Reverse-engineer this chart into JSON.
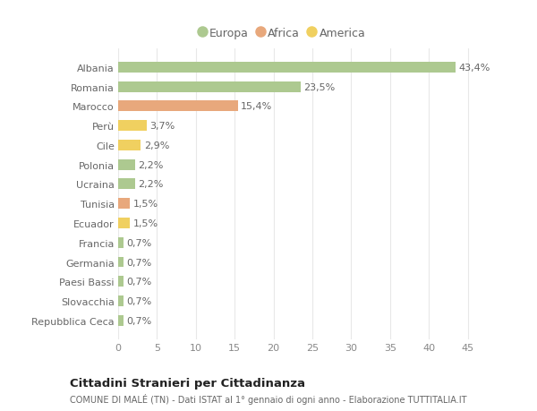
{
  "categories": [
    "Albania",
    "Romania",
    "Marocco",
    "Perù",
    "Cile",
    "Polonia",
    "Ucraina",
    "Tunisia",
    "Ecuador",
    "Francia",
    "Germania",
    "Paesi Bassi",
    "Slovacchia",
    "Repubblica Ceca"
  ],
  "values": [
    43.4,
    23.5,
    15.4,
    3.7,
    2.9,
    2.2,
    2.2,
    1.5,
    1.5,
    0.7,
    0.7,
    0.7,
    0.7,
    0.7
  ],
  "labels": [
    "43,4%",
    "23,5%",
    "15,4%",
    "3,7%",
    "2,9%",
    "2,2%",
    "2,2%",
    "1,5%",
    "1,5%",
    "0,7%",
    "0,7%",
    "0,7%",
    "0,7%",
    "0,7%"
  ],
  "continents": [
    "Europa",
    "Europa",
    "Africa",
    "America",
    "America",
    "Europa",
    "Europa",
    "Africa",
    "America",
    "Europa",
    "Europa",
    "Europa",
    "Europa",
    "Europa"
  ],
  "colors": {
    "Europa": "#adc990",
    "Africa": "#e8a87c",
    "America": "#f0d060"
  },
  "legend_order": [
    "Europa",
    "Africa",
    "America"
  ],
  "legend_colors": [
    "#adc990",
    "#e8a87c",
    "#f0d060"
  ],
  "xlim": [
    0,
    47
  ],
  "xticks": [
    0,
    5,
    10,
    15,
    20,
    25,
    30,
    35,
    40,
    45
  ],
  "title": "Cittadini Stranieri per Cittadinanza",
  "subtitle": "COMUNE DI MALÉ (TN) - Dati ISTAT al 1° gennaio di ogni anno - Elaborazione TUTTITALIA.IT",
  "bg_color": "#ffffff",
  "grid_color": "#e8e8e8",
  "bar_height": 0.55,
  "label_fontsize": 8,
  "ytick_fontsize": 8,
  "xtick_fontsize": 8
}
